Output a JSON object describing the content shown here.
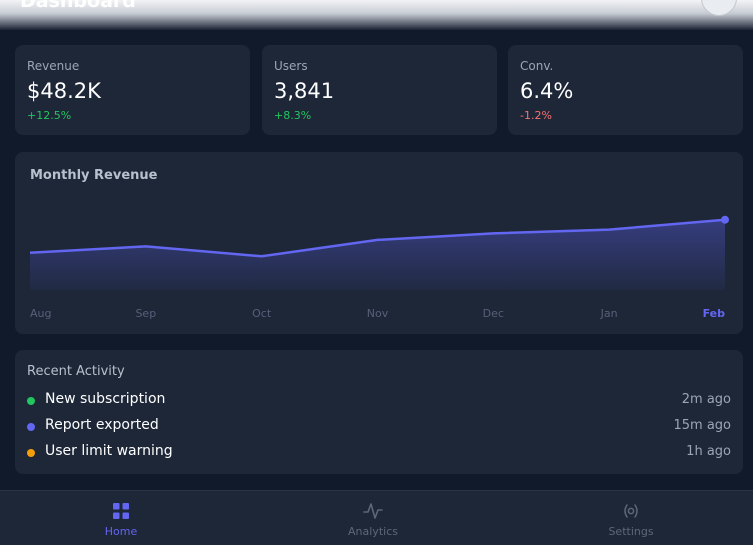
{
  "header": {
    "title": "Dashboard"
  },
  "stats": [
    {
      "label": "Revenue",
      "value": "$48.2K",
      "delta": "+12.5%",
      "trend": "up"
    },
    {
      "label": "Users",
      "value": "3,841",
      "delta": "+8.3%",
      "trend": "up"
    },
    {
      "label": "Conv.",
      "value": "6.4%",
      "delta": "-1.2%",
      "trend": "down"
    }
  ],
  "chart": {
    "title": "Monthly Revenue"
  },
  "chart_data": {
    "type": "area",
    "categories": [
      "Aug",
      "Sep",
      "Oct",
      "Nov",
      "Dec",
      "Jan",
      "Feb"
    ],
    "values": [
      38.0,
      44.5,
      34.4,
      51.1,
      57.8,
      61.6,
      71.7
    ],
    "highlighted": "Feb",
    "ylim": [
      0,
      100
    ],
    "grid": false,
    "legend": "none",
    "line_color": "#6366f1"
  },
  "activity": {
    "heading": "Recent Activity",
    "items": [
      {
        "text": "New subscription",
        "time": "2m ago",
        "color": "#22c55e"
      },
      {
        "text": "Report exported",
        "time": "15m ago",
        "color": "#6366f1"
      },
      {
        "text": "User limit warning",
        "time": "1h ago",
        "color": "#f59e0b"
      }
    ]
  },
  "nav": {
    "items": [
      {
        "label": "Home",
        "icon": "grid-icon",
        "active": true
      },
      {
        "label": "Analytics",
        "icon": "pulse-icon",
        "active": false
      },
      {
        "label": "Settings",
        "icon": "gear-icon",
        "active": false
      }
    ]
  },
  "colors": {
    "accent": "#6366f1",
    "positive": "#22c55e",
    "negative": "#f87171",
    "warning": "#f59e0b"
  }
}
